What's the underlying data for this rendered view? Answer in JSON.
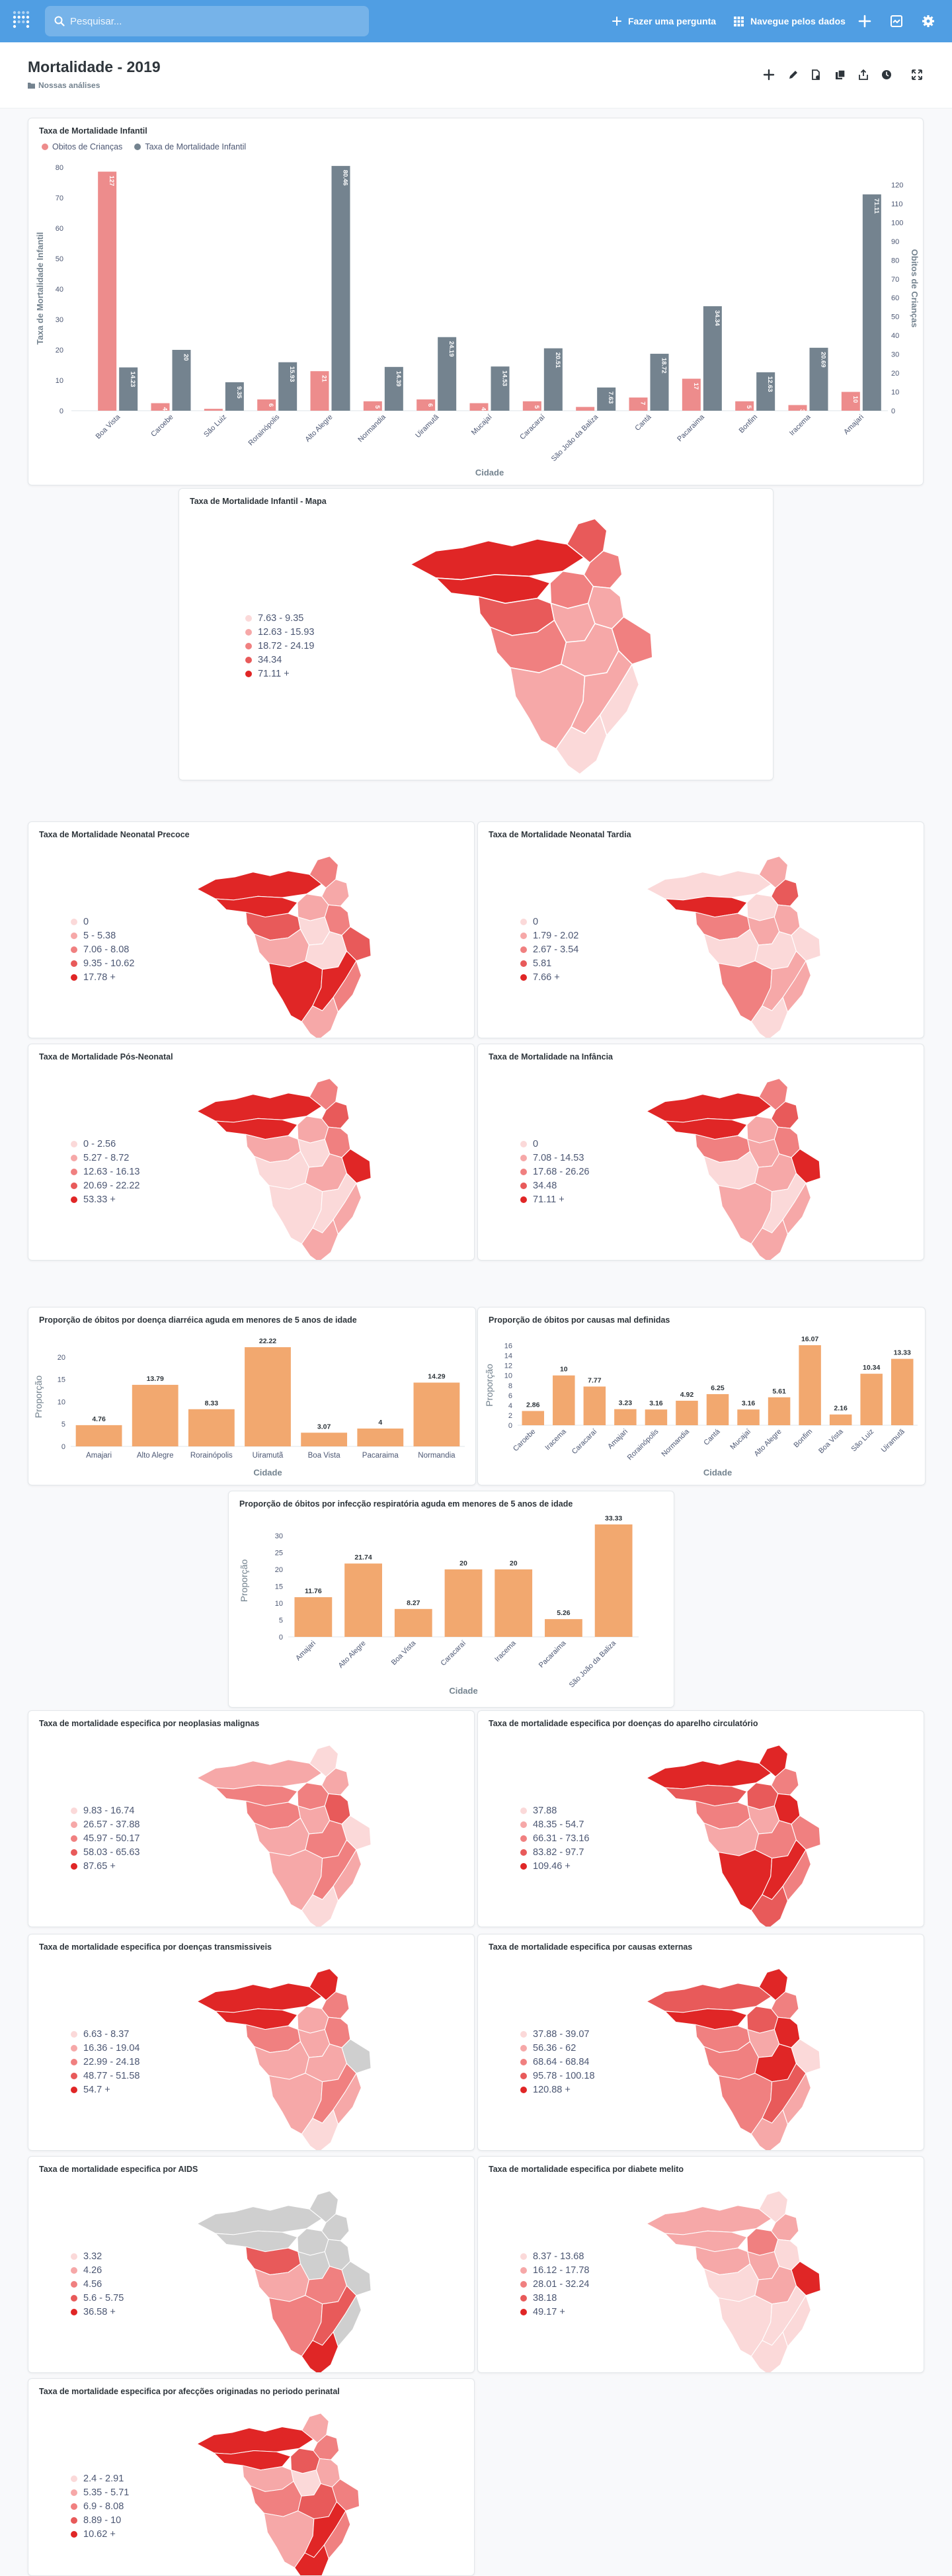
{
  "app": {
    "search_placeholder": "Pesquisar...",
    "ask_label": "Fazer uma pergunta",
    "browse_label": "Navegue pelos dados",
    "accent": "#509ee3"
  },
  "dashboard": {
    "title": "Mortalidade - 2019",
    "collection": "Nossas análises"
  },
  "main_chart": {
    "title": "Taxa de Mortalidade Infantil",
    "legend": [
      "Obitos de Crianças",
      "Taxa de Mortalidade Infantil"
    ],
    "left_axis_label": "Taxa de Mortalidade Infantil",
    "right_axis_label": "Obitos de Crianças",
    "x_label": "Cidade",
    "left_ticks": [
      "80",
      "70",
      "60",
      "50",
      "40",
      "30",
      "20",
      "10",
      "0"
    ],
    "right_ticks": [
      "120",
      "110",
      "100",
      "90",
      "80",
      "70",
      "60",
      "50",
      "40",
      "30",
      "20",
      "10",
      "0"
    ],
    "colors": {
      "obitos": "#ed8c8c",
      "taxa": "#74838f"
    }
  },
  "map_chart": {
    "title": "Taxa de Mortalidade Infantil - Mapa",
    "legend": [
      "7.63 - 9.35",
      "12.63 - 15.93",
      "18.72 - 24.19",
      "34.34",
      "71.11 +"
    ]
  },
  "map_cards": [
    {
      "title": "Taxa de Mortalidade Neonatal Precoce",
      "legend": [
        "0",
        "5 - 5.38",
        "7.06 - 8.08",
        "9.35 - 10.62",
        "17.78 +"
      ]
    },
    {
      "title": "Taxa de Mortalidade Neonatal Tardia",
      "legend": [
        "0",
        "1.79 - 2.02",
        "2.67 - 3.54",
        "5.81",
        "7.66 +"
      ]
    },
    {
      "title": "Taxa de Mortalidade Pós-Neonatal",
      "legend": [
        "0 - 2.56",
        "5.27 - 8.72",
        "12.63 - 16.13",
        "20.69 - 22.22",
        "53.33 +"
      ]
    },
    {
      "title": "Taxa de Mortalidade na Infância",
      "legend": [
        "0",
        "7.08 - 14.53",
        "17.68 - 26.26",
        "34.48",
        "71.11 +"
      ]
    },
    {
      "title": "Taxa de mortalidade especifica por neoplasias malignas",
      "legend": [
        "9.83 - 16.74",
        "26.57 - 37.88",
        "45.97 - 50.17",
        "58.03 - 65.63",
        "87.65 +"
      ]
    },
    {
      "title": "Taxa de mortalidade especifica por doenças do aparelho circulatório",
      "legend": [
        "37.88",
        "48.35 - 54.7",
        "66.31 - 73.16",
        "83.82 - 97.7",
        "109.46 +"
      ]
    },
    {
      "title": "Taxa de mortalidade especifica por doenças transmissiveis",
      "legend": [
        "6.63 - 8.37",
        "16.36 - 19.04",
        "22.99 - 24.18",
        "48.77 - 51.58",
        "54.7 +"
      ]
    },
    {
      "title": "Taxa de mortalidade especifica por causas externas",
      "legend": [
        "37.88 - 39.07",
        "56.36 - 62",
        "68.64 - 68.84",
        "95.78 - 100.18",
        "120.88 +"
      ]
    },
    {
      "title": "Taxa de mortalidade especifica por AIDS",
      "legend": [
        "3.32",
        "4.26",
        "4.56",
        "5.6 - 5.75",
        "36.58 +"
      ]
    },
    {
      "title": "Taxa de mortalidade especifica por diabete melito",
      "legend": [
        "8.37 - 13.68",
        "16.12 - 17.78",
        "28.01 - 32.24",
        "38.18",
        "49.17 +"
      ]
    },
    {
      "title": "Taxa de mortalidade especifica por afecções originadas no periodo perinatal",
      "legend": [
        "2.4 - 2.91",
        "5.35 - 5.71",
        "6.9 - 8.08",
        "8.89 - 10",
        "10.62 +"
      ]
    }
  ],
  "map_colors": [
    "#fbd9d9",
    "#f6a8a8",
    "#f08080",
    "#e85a5a",
    "#e02626"
  ],
  "bar_cards": [
    {
      "title": "Proporção de óbitos por doença diarréica aguda em menores de 5 anos de idade",
      "ylabel": "Proporção",
      "xlabel": "Cidade",
      "ticks": [
        "20",
        "15",
        "10",
        "5",
        "0"
      ]
    },
    {
      "title": "Proporção de óbitos por causas mal definidas",
      "ylabel": "Proporção",
      "xlabel": "Cidade",
      "ticks": [
        "16",
        "14",
        "12",
        "10",
        "8",
        "6",
        "4",
        "2",
        "0"
      ]
    },
    {
      "title": "Proporção de óbitos por infecção respiratória aguda em menores de 5 anos de idade",
      "ylabel": "Proporção",
      "xlabel": "Cidade",
      "ticks": [
        "30",
        "25",
        "20",
        "15",
        "10",
        "5",
        "0"
      ]
    }
  ],
  "bar_color": "#f2a86f",
  "chart_data": [
    {
      "type": "bar",
      "title": "Taxa de Mortalidade Infantil",
      "xlabel": "Cidade",
      "ylabel": "Taxa de Mortalidade Infantil",
      "categories": [
        "Boa Vista",
        "Caroebe",
        "São Luiz",
        "Rorainópolis",
        "Alto Alegre",
        "Normandia",
        "Uiramutã",
        "Mucajaí",
        "Caracaraí",
        "São João da Baliza",
        "Cantá",
        "Pacaraima",
        "Bonfim",
        "Iracema",
        "Amajari"
      ],
      "series": [
        {
          "name": "Obitos de Crianças",
          "axis": "right",
          "values": [
            127,
            4,
            1,
            6,
            21,
            5,
            6,
            4,
            5,
            2,
            7,
            17,
            5,
            3,
            10
          ]
        },
        {
          "name": "Taxa de Mortalidade Infantil",
          "axis": "left",
          "values": [
            14.23,
            20,
            9.35,
            15.93,
            80.46,
            14.39,
            24.19,
            14.53,
            20.51,
            7.63,
            18.72,
            34.34,
            12.63,
            20.69,
            71.11
          ]
        }
      ],
      "ylim_left": [
        0,
        80
      ],
      "ylim_right": [
        0,
        130
      ]
    },
    {
      "type": "bar",
      "title": "Proporção de óbitos por doença diarréica aguda em menores de 5 anos de idade",
      "xlabel": "Cidade",
      "ylabel": "Proporção",
      "categories": [
        "Amajari",
        "Alto Alegre",
        "Rorainópolis",
        "Uiramutã",
        "Boa Vista",
        "Pacaraima",
        "Normandia"
      ],
      "values": [
        4.76,
        13.79,
        8.33,
        22.22,
        3.07,
        4,
        14.29
      ],
      "ylim": [
        0,
        22.22
      ]
    },
    {
      "type": "bar",
      "title": "Proporção de óbitos por causas mal definidas",
      "xlabel": "Cidade",
      "ylabel": "Proporção",
      "categories": [
        "Caroebe",
        "Iracema",
        "Caracaraí",
        "Amajari",
        "Rorainópolis",
        "Normandia",
        "Cantá",
        "Mucajaí",
        "Alto Alegre",
        "Bonfim",
        "Boa Vista",
        "São Luiz",
        "Uiramutã"
      ],
      "values": [
        2.86,
        10,
        7.77,
        3.23,
        3.16,
        4.92,
        6.25,
        3.16,
        5.61,
        16.07,
        2.16,
        10.34,
        13.33
      ],
      "ylim": [
        0,
        16.07
      ]
    },
    {
      "type": "bar",
      "title": "Proporção de óbitos por infecção respiratória aguda em menores de 5 anos de idade",
      "xlabel": "Cidade",
      "ylabel": "Proporção",
      "categories": [
        "Amajari",
        "Alto Alegre",
        "Boa Vista",
        "Caracaraí",
        "Iracema",
        "Pacaraima",
        "São João da Baliza"
      ],
      "values": [
        11.76,
        21.74,
        8.27,
        20,
        20,
        5.26,
        33.33
      ],
      "ylim": [
        0,
        33.33
      ]
    }
  ]
}
